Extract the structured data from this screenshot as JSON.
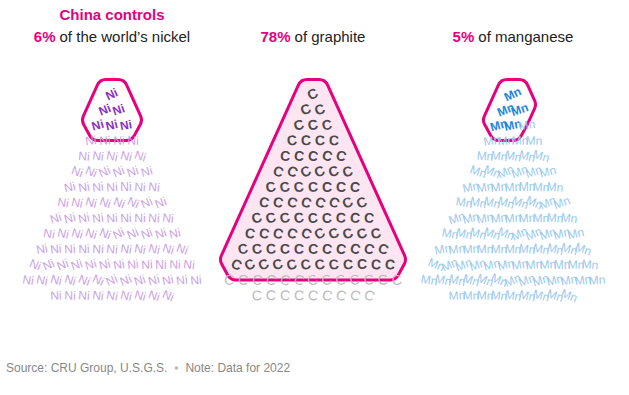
{
  "chart_data": {
    "type": "pictograph",
    "title": "China controls",
    "values": [
      6,
      78,
      5
    ],
    "value_labels": [
      "6%",
      "78%",
      "5%"
    ],
    "labels": [
      "of the world’s nickel",
      "of graphite",
      "of manganese"
    ],
    "symbols": [
      "Ni",
      "C",
      "Mn"
    ],
    "colors": [
      "#8a2fc8",
      "#4a4a4a",
      "#1f86dd"
    ],
    "source": "Source: CRU Group, U.S.G.S.",
    "note": "Note: Data for 2022"
  }
}
